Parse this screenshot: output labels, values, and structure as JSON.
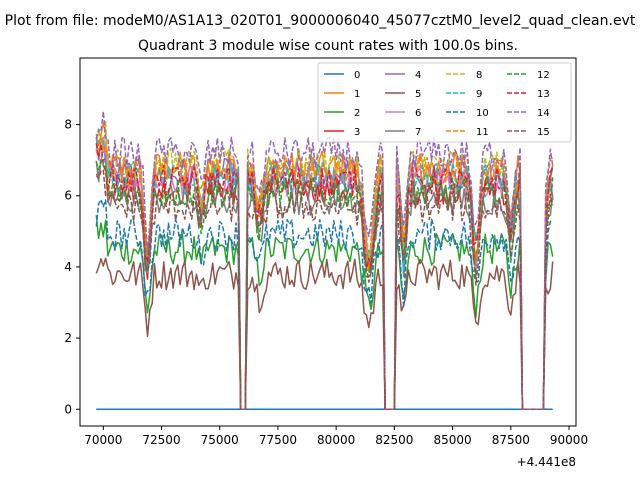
{
  "figure": {
    "suptitle": "Plot from file: modeM0/AS1A13_020T01_9000006040_45077cztM0_level2_quad_clean.evt",
    "title": "Quadrant 3 module wise count rates with 100.0s bins.",
    "offset_label": "+4.441e8"
  },
  "chart_data": {
    "type": "line",
    "title": "Quadrant 3 module wise count rates with 100.0s bins.",
    "xlabel": "",
    "ylabel": "",
    "x_offset": 444100000,
    "xlim": [
      69000,
      90300
    ],
    "ylim": [
      -0.47,
      9.87
    ],
    "xticks": [
      70000,
      72500,
      75000,
      77500,
      80000,
      82500,
      85000,
      87500,
      90000
    ],
    "xtick_labels": [
      "70000",
      "72500",
      "75000",
      "77500",
      "80000",
      "82500",
      "85000",
      "87500",
      "90000"
    ],
    "yticks": [
      0,
      2,
      4,
      6,
      8
    ],
    "ytick_labels": [
      "0",
      "2",
      "4",
      "6",
      "8"
    ],
    "grid": false,
    "legend_placement": "top-right",
    "legend_columns": 4,
    "x_range": [
      69700,
      89300
    ],
    "gaps": [
      [
        75900,
        76100
      ],
      [
        82050,
        82500
      ],
      [
        88000,
        88900
      ]
    ],
    "series": [
      {
        "name": "0",
        "color": "#1f77b4",
        "dash": "solid",
        "level": 0.0
      },
      {
        "name": "1",
        "color": "#ff7f0e",
        "dash": "solid",
        "level": 6.8
      },
      {
        "name": "2",
        "color": "#2ca02c",
        "dash": "solid",
        "level": 4.5
      },
      {
        "name": "3",
        "color": "#d62728",
        "dash": "solid",
        "level": 6.2
      },
      {
        "name": "4",
        "color": "#9467bd",
        "dash": "solid",
        "level": 6.6
      },
      {
        "name": "5",
        "color": "#8c564b",
        "dash": "solid",
        "level": 3.8
      },
      {
        "name": "6",
        "color": "#e377c2",
        "dash": "solid",
        "level": 6.4
      },
      {
        "name": "7",
        "color": "#7f7f7f",
        "dash": "solid",
        "level": 5.9
      },
      {
        "name": "8",
        "color": "#bcbd22",
        "dash": "dashed",
        "level": 6.9
      },
      {
        "name": "9",
        "color": "#17becf",
        "dash": "dashed",
        "level": 6.5
      },
      {
        "name": "10",
        "color": "#1f77b4",
        "dash": "dashed",
        "level": 4.9
      },
      {
        "name": "11",
        "color": "#ff7f0e",
        "dash": "dashed",
        "level": 6.7
      },
      {
        "name": "12",
        "color": "#2ca02c",
        "dash": "dashed",
        "level": 6.1
      },
      {
        "name": "13",
        "color": "#d62728",
        "dash": "dashed",
        "level": 6.4
      },
      {
        "name": "14",
        "color": "#9467bd",
        "dash": "dashed",
        "level": 7.2
      },
      {
        "name": "15",
        "color": "#8c564b",
        "dash": "dashed",
        "level": 5.7
      }
    ]
  }
}
